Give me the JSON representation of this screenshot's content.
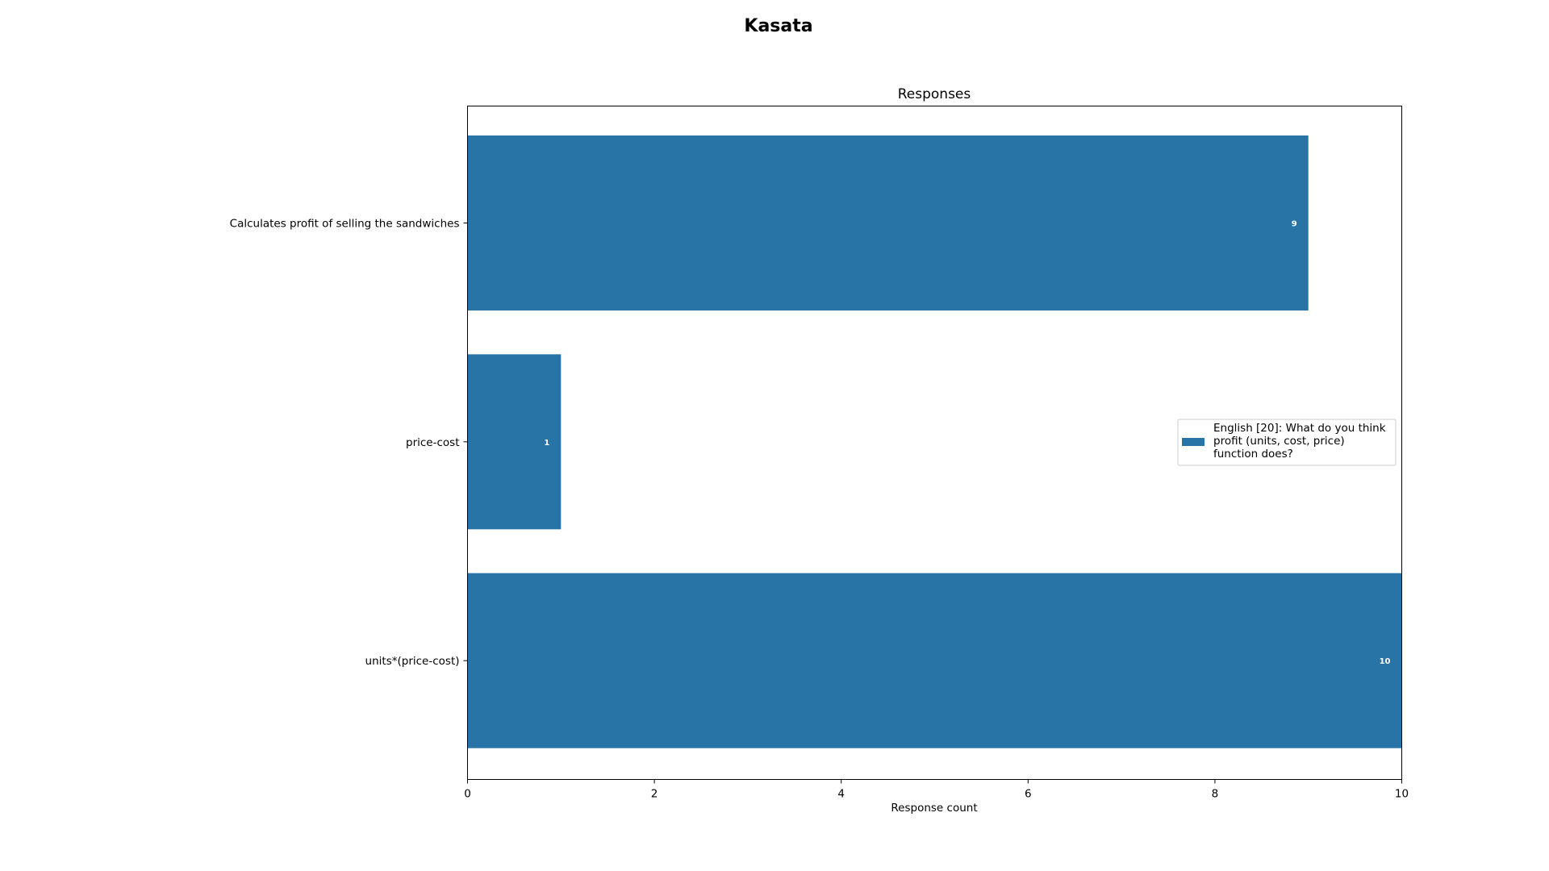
{
  "figure": {
    "title": "Kasata"
  },
  "chart_data": {
    "type": "bar",
    "orientation": "horizontal",
    "title": "Responses",
    "xlabel": "Response count",
    "ylabel": "",
    "xlim": [
      0,
      10
    ],
    "xticks": [
      0,
      2,
      4,
      6,
      8,
      10
    ],
    "grid": false,
    "legend_position": "center-right",
    "categories": [
      "Calculates profit of selling the sandwiches",
      "price-cost",
      "units*(price-cost)"
    ],
    "series": [
      {
        "name": "English [20]: What do you think profit (units, cost, price) function does?",
        "legend_lines": [
          "English [20]: What do you think",
          "profit (units, cost, price)",
          "function does?"
        ],
        "values": [
          9,
          1,
          10
        ],
        "color": "#2874a6",
        "label_color": "#ffffff"
      }
    ]
  }
}
